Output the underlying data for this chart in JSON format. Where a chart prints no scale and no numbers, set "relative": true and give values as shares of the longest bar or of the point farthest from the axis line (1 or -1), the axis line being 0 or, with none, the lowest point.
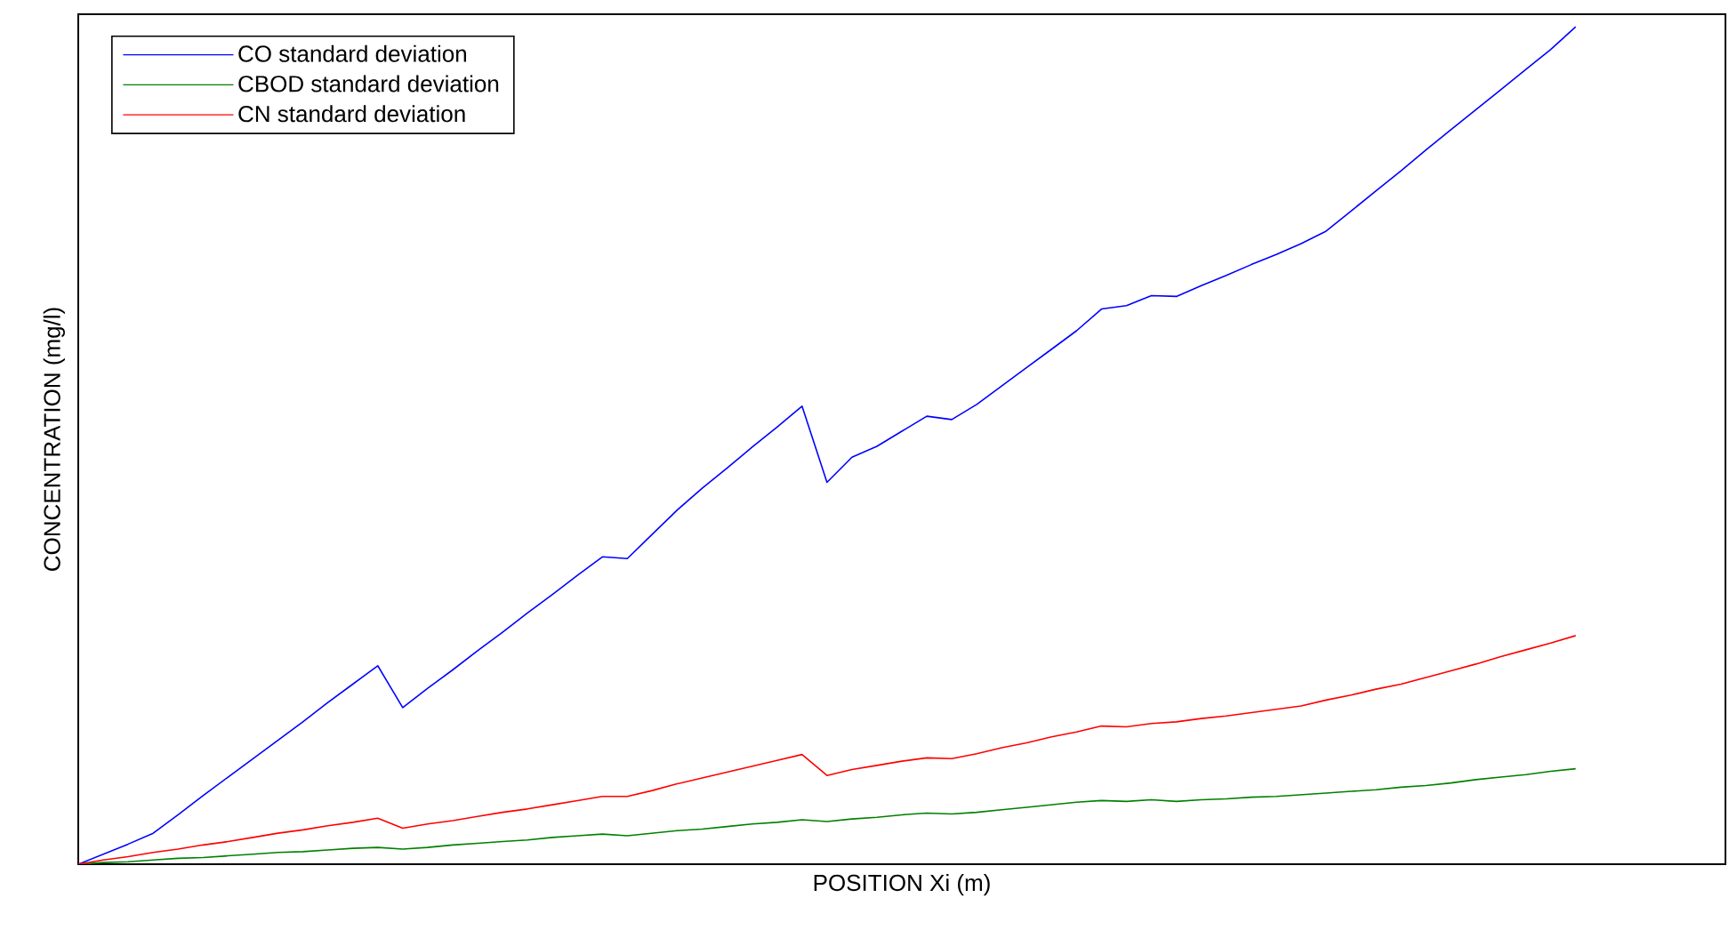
{
  "chart_data": {
    "type": "line",
    "relative": true,
    "xlabel": "POSITION Xi (m)",
    "ylabel": "CONCENTRATION (mg/l)",
    "legend": "top left",
    "categories": [
      null,
      null,
      null,
      null,
      null,
      null,
      null,
      null,
      null,
      null,
      null,
      null,
      null,
      null,
      null,
      null,
      null,
      null,
      null,
      null,
      null,
      null,
      null,
      null,
      null,
      null,
      null,
      null,
      null,
      null,
      null,
      null,
      null,
      null,
      null,
      null,
      null,
      null,
      null,
      null,
      null,
      null,
      null,
      null,
      null,
      null,
      null,
      null,
      null,
      null,
      null,
      null,
      null,
      null,
      null,
      null,
      null,
      null,
      null,
      null,
      null
    ],
    "series": [
      {
        "name": "CO standard deviation",
        "color": "#0000ff",
        "values": [
          0,
          0.012,
          0.024,
          0.037,
          0.059,
          0.082,
          0.104,
          0.126,
          0.148,
          0.17,
          0.193,
          0.215,
          0.237,
          0.187,
          0.21,
          0.232,
          0.255,
          0.277,
          0.3,
          0.322,
          0.345,
          0.367,
          0.365,
          0.394,
          0.423,
          0.449,
          0.473,
          0.498,
          0.522,
          0.547,
          0.456,
          0.486,
          0.499,
          0.517,
          0.535,
          0.531,
          0.549,
          0.571,
          0.593,
          0.615,
          0.637,
          0.663,
          0.667,
          0.679,
          0.678,
          0.691,
          0.703,
          0.716,
          0.728,
          0.741,
          0.756,
          0.78,
          0.804,
          0.828,
          0.853,
          0.877,
          0.901,
          0.925,
          0.949,
          0.973,
          1.0
        ]
      },
      {
        "name": "CBOD standard deviation",
        "color": "#008000",
        "values": [
          0,
          0.002,
          0.003,
          0.005,
          0.007,
          0.008,
          0.01,
          0.012,
          0.014,
          0.015,
          0.017,
          0.019,
          0.02,
          0.018,
          0.02,
          0.023,
          0.025,
          0.027,
          0.029,
          0.032,
          0.034,
          0.036,
          0.034,
          0.037,
          0.04,
          0.042,
          0.045,
          0.048,
          0.05,
          0.053,
          0.051,
          0.054,
          0.056,
          0.059,
          0.061,
          0.06,
          0.062,
          0.065,
          0.068,
          0.071,
          0.074,
          0.076,
          0.075,
          0.077,
          0.075,
          0.077,
          0.078,
          0.08,
          0.081,
          0.083,
          0.085,
          0.087,
          0.089,
          0.092,
          0.094,
          0.097,
          0.101,
          0.104,
          0.107,
          0.111,
          0.114
        ]
      },
      {
        "name": "CN standard deviation",
        "color": "#ff0000",
        "values": [
          0,
          0.005,
          0.009,
          0.014,
          0.018,
          0.023,
          0.027,
          0.032,
          0.037,
          0.041,
          0.046,
          0.05,
          0.055,
          0.043,
          0.048,
          0.052,
          0.057,
          0.062,
          0.066,
          0.071,
          0.076,
          0.081,
          0.081,
          0.088,
          0.096,
          0.103,
          0.11,
          0.117,
          0.124,
          0.131,
          0.106,
          0.113,
          0.118,
          0.123,
          0.127,
          0.126,
          0.132,
          0.139,
          0.145,
          0.152,
          0.158,
          0.165,
          0.164,
          0.168,
          0.17,
          0.174,
          0.177,
          0.181,
          0.185,
          0.189,
          0.196,
          0.202,
          0.209,
          0.215,
          0.223,
          0.231,
          0.239,
          0.248,
          0.256,
          0.264,
          0.273
        ]
      }
    ]
  }
}
